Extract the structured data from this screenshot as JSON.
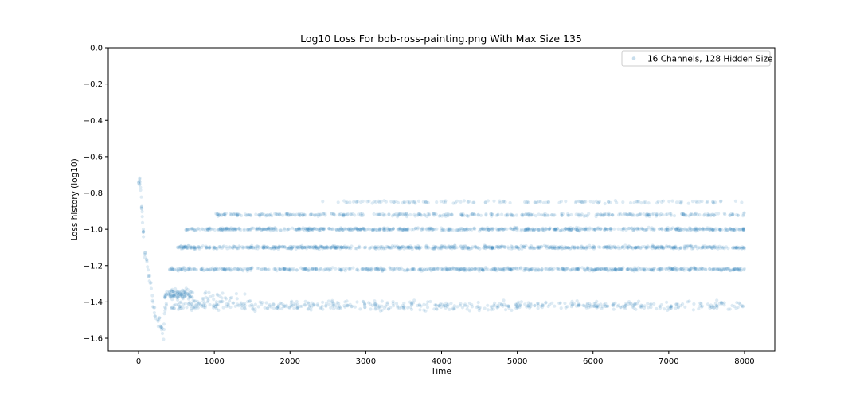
{
  "chart_data": {
    "type": "scatter",
    "title": "Log10 Loss For bob-ross-painting.png With Max Size 135",
    "xlabel": "Time",
    "ylabel": "Loss history (log10)",
    "xlim": [
      -400,
      8400
    ],
    "ylim": [
      -1.67,
      0.0
    ],
    "xticks": [
      0,
      1000,
      2000,
      3000,
      4000,
      5000,
      6000,
      7000,
      8000
    ],
    "xtick_labels": [
      "0",
      "1000",
      "2000",
      "3000",
      "4000",
      "5000",
      "6000",
      "7000",
      "8000"
    ],
    "yticks": [
      0.0,
      -0.2,
      -0.4,
      -0.6,
      -0.8,
      -1.0,
      -1.2,
      -1.4,
      -1.6
    ],
    "ytick_labels": [
      "0.0",
      "−0.2",
      "−0.4",
      "−0.6",
      "−0.8",
      "−1.0",
      "−1.2",
      "−1.4",
      "−1.6"
    ],
    "grid": false,
    "legend_position": "top-right",
    "series": [
      {
        "name": "16 Channels, 128 Hidden Size",
        "color": "#1f77b4",
        "alpha": 0.15,
        "summary": [
          {
            "x": 0,
            "y": -0.74
          },
          {
            "x": 20,
            "y": -0.75
          },
          {
            "x": 50,
            "y": -0.95
          },
          {
            "x": 80,
            "y": -1.12
          },
          {
            "x": 120,
            "y": -1.2
          },
          {
            "x": 170,
            "y": -1.35
          },
          {
            "x": 220,
            "y": -1.48
          },
          {
            "x": 280,
            "y": -1.52
          },
          {
            "x": 330,
            "y": -1.58
          },
          {
            "x": 350,
            "y": -1.36
          },
          {
            "x": 500,
            "y": -1.35
          },
          {
            "x": 800,
            "y": -1.38
          },
          {
            "x": 2000,
            "y": -1.4
          },
          {
            "x": 4000,
            "y": -1.42
          },
          {
            "x": 6000,
            "y": -1.43
          },
          {
            "x": 8000,
            "y": -1.43
          }
        ],
        "bands": [
          {
            "y": -0.85,
            "x_start": 2400,
            "x_end": 8000,
            "density": 0.25
          },
          {
            "y": -0.92,
            "x_start": 1000,
            "x_end": 8000,
            "density": 0.55
          },
          {
            "y": -1.0,
            "x_start": 600,
            "x_end": 8000,
            "density": 0.9
          },
          {
            "y": -1.1,
            "x_start": 500,
            "x_end": 8000,
            "density": 1.0
          },
          {
            "y": -1.22,
            "x_start": 400,
            "x_end": 8000,
            "density": 0.85
          },
          {
            "y": -1.42,
            "x_start": 350,
            "x_end": 8000,
            "density": 0.7
          }
        ]
      }
    ]
  }
}
